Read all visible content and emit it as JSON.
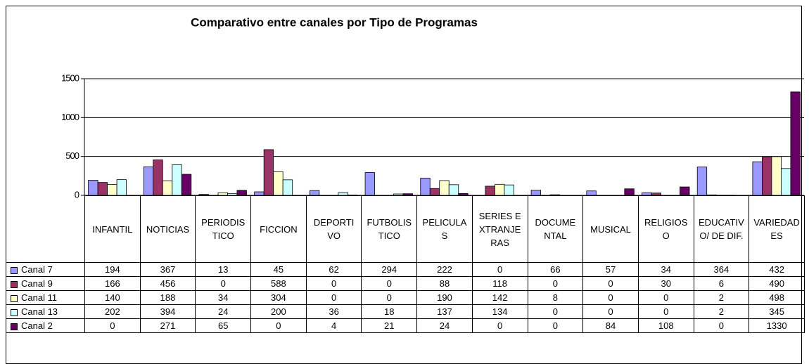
{
  "chart_data": {
    "type": "bar",
    "title": "Comparativo entre canales por Tipo de Programas",
    "categories": [
      "INFANTIL",
      "NOTICIAS",
      "PERIODISTICO",
      "FICCION",
      "DEPORTIVO",
      "FUTBOLISTICO",
      "PELICULAS",
      "SERIES EXTRANJERAS",
      "DOCUMENTAL",
      "MUSICAL",
      "RELIGIOSO",
      "EDUCATIVO/ DE DIF.",
      "VARIEDADES"
    ],
    "series": [
      {
        "name": "Canal 7",
        "color": "#9999ff",
        "values": [
          194,
          367,
          13,
          45,
          62,
          294,
          222,
          0,
          66,
          57,
          34,
          364,
          432
        ]
      },
      {
        "name": "Canal 9",
        "color": "#993366",
        "values": [
          166,
          456,
          0,
          588,
          0,
          0,
          88,
          118,
          0,
          0,
          30,
          6,
          490
        ]
      },
      {
        "name": "Canal 11",
        "color": "#ffffcc",
        "values": [
          140,
          188,
          34,
          304,
          0,
          0,
          190,
          142,
          8,
          0,
          0,
          2,
          498
        ]
      },
      {
        "name": "Canal 13",
        "color": "#ccffff",
        "values": [
          202,
          394,
          24,
          200,
          36,
          18,
          137,
          134,
          0,
          0,
          0,
          2,
          345
        ]
      },
      {
        "name": "Canal 2",
        "color": "#660066",
        "values": [
          0,
          271,
          65,
          0,
          4,
          21,
          24,
          0,
          0,
          84,
          108,
          0,
          1330
        ]
      }
    ],
    "ylim": [
      0,
      1500
    ],
    "yticks": [
      0,
      500,
      1000,
      1500
    ],
    "grid": true
  }
}
